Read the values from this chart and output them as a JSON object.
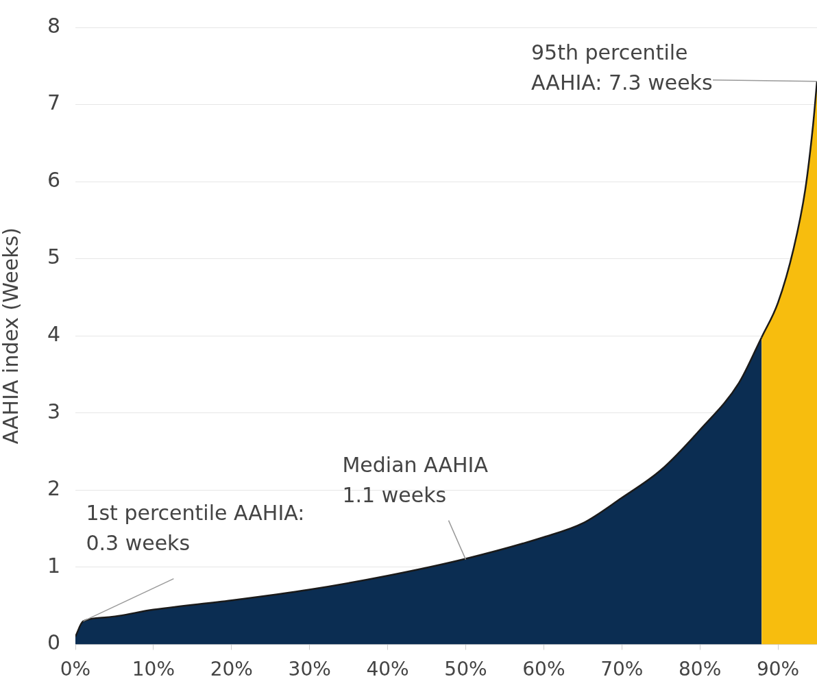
{
  "chart_data": {
    "type": "area",
    "ylabel": "AAHIA index (Weeks)",
    "series": [
      {
        "color": "#0b2d52",
        "x": [
          0,
          1,
          4,
          10,
          20,
          30,
          40,
          50,
          60,
          65,
          70,
          75,
          80,
          85,
          87.9
        ],
        "values": [
          0.1,
          0.3,
          0.35,
          0.45,
          0.57,
          0.71,
          0.89,
          1.11,
          1.39,
          1.57,
          1.9,
          2.26,
          2.78,
          3.39,
          3.98
        ]
      },
      {
        "color": "#f7bd0e",
        "x": [
          87.9,
          90,
          92,
          93.5,
          94.5,
          95
        ],
        "values": [
          3.98,
          4.43,
          5.13,
          5.9,
          6.74,
          7.3
        ]
      }
    ],
    "xlim": [
      0,
      95
    ],
    "xticks": [
      {
        "value": 0,
        "label": "0%"
      },
      {
        "value": 10,
        "label": "10%"
      },
      {
        "value": 20,
        "label": "20%"
      },
      {
        "value": 30,
        "label": "30%"
      },
      {
        "value": 40,
        "label": "40%"
      },
      {
        "value": 50,
        "label": "50%"
      },
      {
        "value": 60,
        "label": "60%"
      },
      {
        "value": 70,
        "label": "70%"
      },
      {
        "value": 80,
        "label": "80%"
      },
      {
        "value": 90,
        "label": "90%"
      }
    ],
    "ylim": [
      0,
      8
    ],
    "yticks": [
      0,
      1,
      2,
      3,
      4,
      5,
      6,
      7,
      8
    ],
    "grid": "y",
    "legend": false,
    "annotations": [
      {
        "text": "1st percentile AAHIA:\n0.3 weeks",
        "x": 1,
        "y": 0.3
      },
      {
        "text": "Median AAHIA\n1.1 weeks",
        "x": 50,
        "y": 1.1
      },
      {
        "text": "95th percentile\nAAHIA: 7.3 weeks",
        "x": 95,
        "y": 7.3
      }
    ]
  }
}
